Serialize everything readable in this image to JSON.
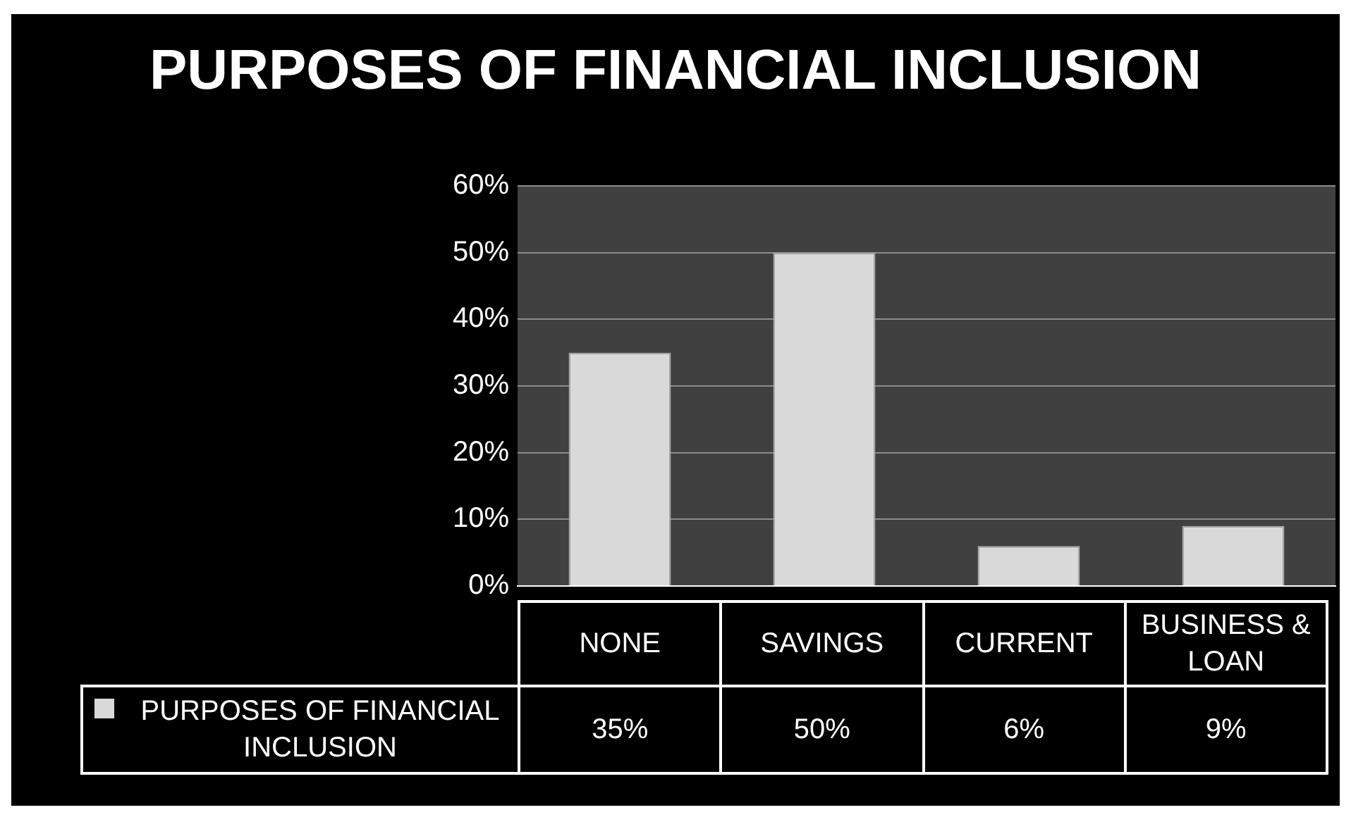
{
  "chart_data": {
    "type": "bar",
    "title": "PURPOSES OF FINANCIAL INCLUSION",
    "categories": [
      "NONE",
      "SAVINGS",
      "CURRENT",
      "BUSINESS & LOAN"
    ],
    "series": [
      {
        "name": "PURPOSES OF FINANCIAL INCLUSION",
        "color": "#d9d9d9",
        "values": [
          35,
          50,
          6,
          9
        ],
        "value_labels": [
          "35%",
          "50%",
          "6%",
          "9%"
        ]
      }
    ],
    "ylim": [
      0,
      60
    ],
    "yticks": [
      {
        "value": 0,
        "label": "0%"
      },
      {
        "value": 10,
        "label": "10%"
      },
      {
        "value": 20,
        "label": "20%"
      },
      {
        "value": 30,
        "label": "30%"
      },
      {
        "value": 40,
        "label": "40%"
      },
      {
        "value": 50,
        "label": "50%"
      },
      {
        "value": 60,
        "label": "60%"
      }
    ],
    "grid": "y",
    "legend": "bottom left"
  }
}
